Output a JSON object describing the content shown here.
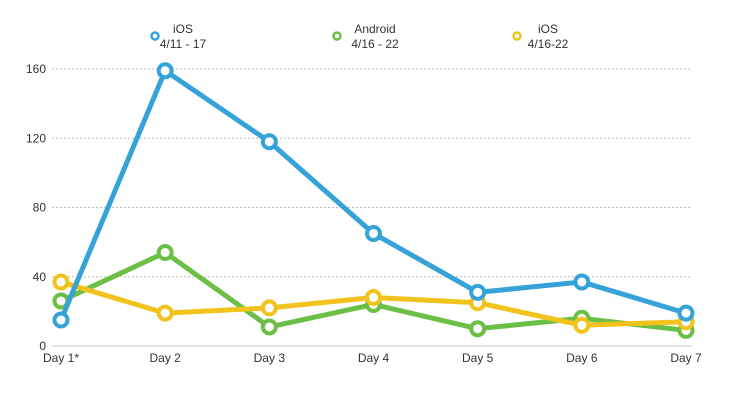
{
  "chart_data": {
    "type": "line",
    "title": "",
    "xlabel": "",
    "ylabel": "",
    "categories": [
      "Day 1*",
      "Day 2",
      "Day 3",
      "Day 4",
      "Day 5",
      "Day 6",
      "Day 7"
    ],
    "ylim": [
      0,
      160
    ],
    "yticks": [
      0,
      40,
      80,
      120,
      160
    ],
    "yticklabels": [
      "0",
      "40",
      "80",
      "120",
      "160"
    ],
    "grid": true,
    "legend_position": "top",
    "series": [
      {
        "name": "iOS",
        "subtitle": "4/11 - 17",
        "color": "#35a3d8",
        "values": [
          15,
          159,
          118,
          65,
          31,
          37,
          19
        ]
      },
      {
        "name": "Android",
        "subtitle": "4/16 - 22",
        "color": "#6cbf45",
        "values": [
          26,
          54,
          11,
          24,
          10,
          16,
          9
        ]
      },
      {
        "name": "iOS",
        "subtitle": "4/16-22",
        "color": "#f2c31c",
        "values": [
          37,
          19,
          22,
          28,
          25,
          12,
          14
        ]
      }
    ],
    "draw_order": [
      1,
      2,
      0
    ]
  }
}
